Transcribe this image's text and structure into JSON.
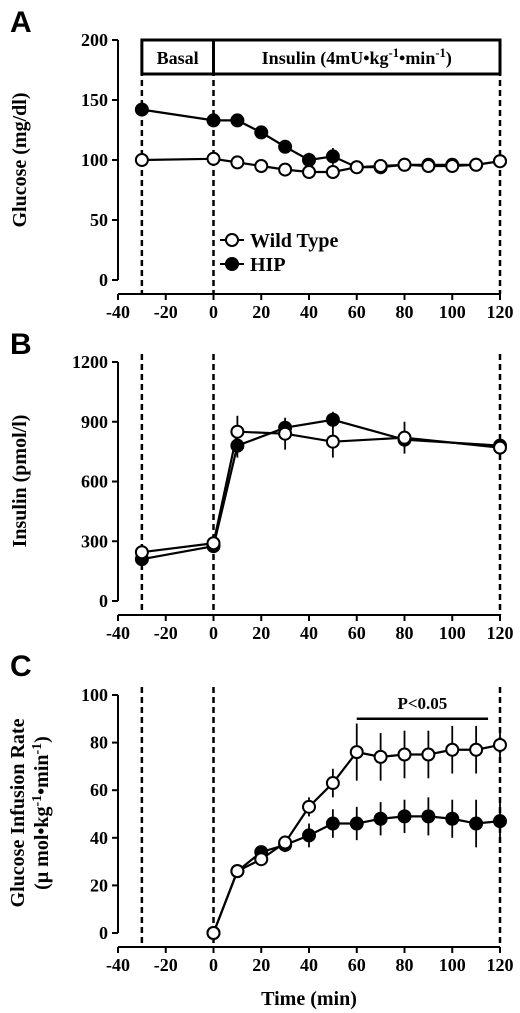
{
  "chart_data": [
    {
      "panel_letter": "A",
      "type": "line",
      "ylabel": "Glucose (mg/dl)",
      "xlim": [
        -40,
        120
      ],
      "ylim": [
        0,
        200
      ],
      "xticks": [
        -40,
        -20,
        0,
        20,
        40,
        60,
        80,
        100,
        120
      ],
      "yticks": [
        0,
        50,
        100,
        150,
        200
      ],
      "x_tick_labels": [
        "-40",
        "-20",
        "0",
        "20",
        "40",
        "60",
        "80",
        "100",
        "120"
      ],
      "y_tick_labels": [
        "0",
        "50",
        "100",
        "150",
        "200"
      ],
      "reference_lines_x": [
        -30,
        0,
        120
      ],
      "banner": {
        "basal": "Basal",
        "insulin": "Insulin (4mU•kg-1•min-1)"
      },
      "legend": {
        "placement": "center",
        "entries": [
          "Wild Type",
          "HIP"
        ]
      },
      "series": [
        {
          "name": "Wild Type",
          "marker": "open-circle",
          "x": [
            -30,
            0,
            10,
            20,
            30,
            40,
            50,
            60,
            70,
            80,
            90,
            100,
            110,
            120
          ],
          "y": [
            100,
            101,
            98,
            95,
            92,
            90,
            90,
            94,
            95,
            96,
            95,
            95,
            96,
            99
          ]
        },
        {
          "name": "HIP",
          "marker": "filled-circle",
          "x": [
            -30,
            0,
            10,
            20,
            30,
            40,
            50,
            60,
            70,
            80,
            90,
            100,
            110,
            120
          ],
          "y": [
            142,
            133,
            133,
            123,
            111,
            100,
            103,
            94,
            94,
            96,
            96,
            96,
            96,
            99
          ],
          "error": [
            5,
            5,
            5,
            5,
            3,
            6,
            7,
            2,
            3,
            3,
            3,
            3,
            3,
            3
          ]
        }
      ]
    },
    {
      "panel_letter": "B",
      "type": "line",
      "ylabel": "Insulin (pmol/l)",
      "xlim": [
        -40,
        120
      ],
      "ylim": [
        0,
        1200
      ],
      "xticks": [
        -40,
        -20,
        0,
        20,
        40,
        60,
        80,
        100,
        120
      ],
      "yticks": [
        0,
        300,
        600,
        900,
        1200
      ],
      "x_tick_labels": [
        "-40",
        "-20",
        "0",
        "20",
        "40",
        "60",
        "80",
        "100",
        "120"
      ],
      "y_tick_labels": [
        "0",
        "300",
        "600",
        "900",
        "1200"
      ],
      "reference_lines_x": [
        -30,
        0,
        120
      ],
      "series": [
        {
          "name": "Wild Type",
          "marker": "open-circle",
          "x": [
            -30,
            0,
            10,
            30,
            50,
            80,
            120
          ],
          "y": [
            245,
            290,
            850,
            840,
            800,
            820,
            770
          ],
          "error": [
            30,
            30,
            80,
            80,
            80,
            80,
            40
          ]
        },
        {
          "name": "HIP",
          "marker": "filled-circle",
          "x": [
            -30,
            0,
            10,
            30,
            50,
            80,
            120
          ],
          "y": [
            210,
            275,
            780,
            870,
            910,
            810,
            780
          ],
          "error": [
            30,
            25,
            60,
            30,
            40,
            40,
            30
          ]
        }
      ]
    },
    {
      "panel_letter": "C",
      "type": "line",
      "ylabel_line1": "Glucose Infusion Rate",
      "ylabel_line2": "(μ mol•kg-1•min-1)",
      "xlabel": "Time (min)",
      "xlim": [
        -40,
        120
      ],
      "ylim": [
        0,
        100
      ],
      "xticks": [
        -40,
        -20,
        0,
        20,
        40,
        60,
        80,
        100,
        120
      ],
      "yticks": [
        0,
        20,
        40,
        60,
        80,
        100
      ],
      "x_tick_labels": [
        "-40",
        "-20",
        "0",
        "20",
        "40",
        "60",
        "80",
        "100",
        "120"
      ],
      "y_tick_labels": [
        "0",
        "20",
        "40",
        "60",
        "80",
        "100"
      ],
      "reference_lines_x": [
        -30,
        0,
        120
      ],
      "annotation": {
        "text": "P<0.05",
        "x_from": 60,
        "x_to": 115,
        "y": 90
      },
      "series": [
        {
          "name": "Wild Type",
          "marker": "open-circle",
          "x": [
            0,
            10,
            20,
            30,
            40,
            50,
            60,
            70,
            80,
            90,
            100,
            110,
            120
          ],
          "y": [
            0,
            26,
            31,
            38,
            53,
            63,
            76,
            74,
            75,
            75,
            77,
            77,
            79
          ],
          "error": [
            1,
            2,
            2,
            3,
            4,
            6,
            12,
            10,
            10,
            10,
            10,
            10,
            6
          ]
        },
        {
          "name": "HIP",
          "marker": "filled-circle",
          "x": [
            0,
            10,
            20,
            30,
            40,
            50,
            60,
            70,
            80,
            90,
            100,
            110,
            120
          ],
          "y": [
            0,
            26,
            34,
            37,
            41,
            46,
            46,
            48,
            49,
            49,
            48,
            46,
            47
          ],
          "error": [
            1,
            2,
            2,
            3,
            5,
            6,
            7,
            7,
            7,
            8,
            8,
            10,
            8
          ]
        }
      ]
    }
  ]
}
